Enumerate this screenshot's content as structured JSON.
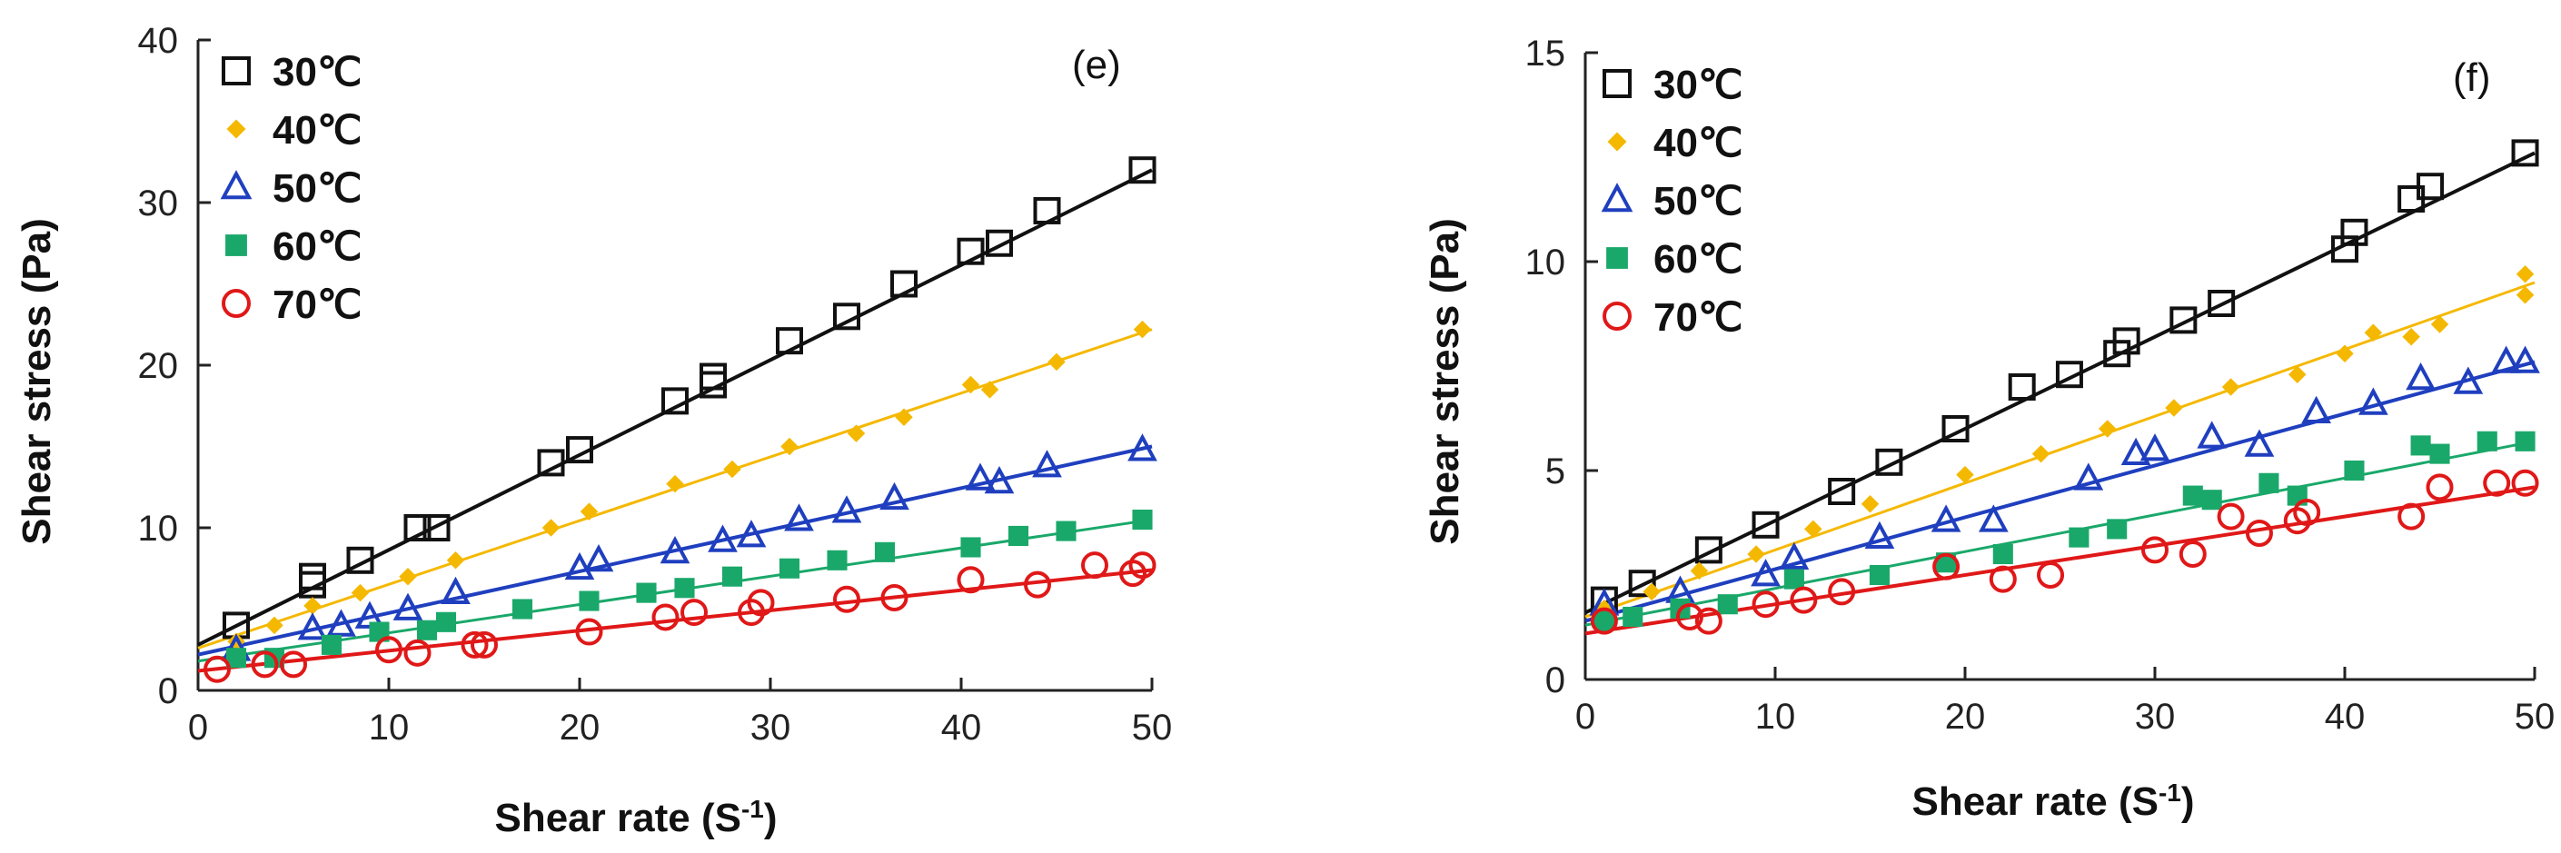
{
  "chart_data": [
    {
      "type": "scatter",
      "panel_label": "(e)",
      "xlabel": "Shear rate (S",
      "xlabel_sup": "-1",
      "xlabel_close": ")",
      "ylabel": "Shear stress (Pa)",
      "xlim": [
        0,
        50
      ],
      "ylim": [
        0,
        40
      ],
      "xticks": [
        0,
        10,
        20,
        30,
        40,
        50
      ],
      "yticks": [
        0,
        10,
        20,
        30,
        40
      ],
      "legend_position": "top-left",
      "series": [
        {
          "name": "30℃",
          "marker": "open-square",
          "color": "#111111",
          "x": [
            2,
            6,
            6,
            8.5,
            11.5,
            12.5,
            18.5,
            20,
            25,
            27,
            27,
            31,
            34,
            37,
            40.5,
            42,
            44.5,
            49.5
          ],
          "y": [
            4,
            6.5,
            7,
            8,
            10,
            10,
            14,
            14.8,
            17.8,
            18.8,
            19.3,
            21.5,
            23,
            25,
            27,
            27.5,
            29.5,
            32
          ],
          "fit": [
            [
              0,
              2.8
            ],
            [
              50,
              32
            ]
          ]
        },
        {
          "name": "40℃",
          "marker": "diamond",
          "color": "#f5b800",
          "x": [
            2,
            4,
            6,
            8.5,
            11,
            13.5,
            18.5,
            20.5,
            25,
            28,
            31,
            34.5,
            37,
            40.5,
            41.5,
            45,
            49.5
          ],
          "y": [
            3,
            4,
            5.2,
            6,
            7,
            8,
            10,
            11,
            12.7,
            13.6,
            15,
            15.8,
            16.8,
            18.8,
            18.5,
            20.2,
            22.2
          ],
          "fit": [
            [
              0,
              2.6
            ],
            [
              50,
              22.2
            ]
          ]
        },
        {
          "name": "50℃",
          "marker": "open-triangle",
          "color": "#1f3fbf",
          "x": [
            2,
            6,
            7.5,
            9,
            11,
            13.5,
            20,
            21,
            25,
            27.5,
            29,
            31.5,
            34,
            36.5,
            41,
            42,
            44.5,
            49.5
          ],
          "y": [
            2.5,
            3.8,
            4,
            4.5,
            5,
            6,
            7.5,
            8,
            8.5,
            9.2,
            9.5,
            10.5,
            11,
            11.8,
            13,
            12.8,
            13.8,
            14.8
          ],
          "fit": [
            [
              0,
              2.2
            ],
            [
              50,
              15
            ]
          ]
        },
        {
          "name": "60℃",
          "marker": "filled-square",
          "color": "#1aa86a",
          "x": [
            2,
            4,
            7,
            9.5,
            12,
            13,
            17,
            20.5,
            23.5,
            25.5,
            28,
            31,
            33.5,
            36,
            40.5,
            43,
            45.5,
            49.5
          ],
          "y": [
            2,
            2,
            2.8,
            3.6,
            3.7,
            4.2,
            5,
            5.5,
            6,
            6.3,
            7,
            7.5,
            8,
            8.5,
            8.8,
            9.5,
            9.8,
            10.5
          ],
          "fit": [
            [
              0,
              1.8
            ],
            [
              50,
              10.5
            ]
          ]
        },
        {
          "name": "70℃",
          "marker": "open-circle",
          "color": "#e01818",
          "x": [
            1,
            3.5,
            5,
            10,
            11.5,
            14.5,
            15,
            20.5,
            24.5,
            26,
            29,
            29.5,
            34,
            36.5,
            40.5,
            44,
            47,
            49,
            49.5
          ],
          "y": [
            1.3,
            1.6,
            1.6,
            2.5,
            2.3,
            2.8,
            2.8,
            3.6,
            4.5,
            4.8,
            4.8,
            5.4,
            5.6,
            5.7,
            6.8,
            6.5,
            7.7,
            7.2,
            7.7
          ],
          "fit": [
            [
              0,
              1.2
            ],
            [
              50,
              7.4
            ]
          ]
        }
      ]
    },
    {
      "type": "scatter",
      "panel_label": "(f)",
      "xlabel": "Shear rate (S",
      "xlabel_sup": "-1",
      "xlabel_close": ")",
      "ylabel": "Shear stress (Pa)",
      "xlim": [
        0,
        50
      ],
      "ylim": [
        0,
        15
      ],
      "xticks": [
        0,
        10,
        20,
        30,
        40,
        50
      ],
      "yticks": [
        0,
        5,
        10,
        15
      ],
      "legend_position": "top-left",
      "series": [
        {
          "name": "30℃",
          "marker": "open-square",
          "color": "#111111",
          "x": [
            1,
            3,
            6.5,
            9.5,
            13.5,
            16,
            19.5,
            23,
            25.5,
            28,
            28.5,
            31.5,
            33.5,
            40,
            40.5,
            43.5,
            44.5,
            49.5
          ],
          "y": [
            1.9,
            2.3,
            3.1,
            3.7,
            4.5,
            5.2,
            6,
            7,
            7.3,
            7.8,
            8.1,
            8.6,
            9,
            10.3,
            10.7,
            11.5,
            11.8,
            12.6
          ],
          "fit": [
            [
              0,
              1.6
            ],
            [
              50,
              12.6
            ]
          ]
        },
        {
          "name": "40℃",
          "marker": "diamond",
          "color": "#f5b800",
          "x": [
            1,
            3.5,
            6,
            9,
            12,
            15,
            20,
            24,
            27.5,
            31,
            34,
            37.5,
            40,
            41.5,
            43.5,
            45,
            49.5,
            49.5
          ],
          "y": [
            1.7,
            2.1,
            2.6,
            3,
            3.6,
            4.2,
            4.9,
            5.4,
            6,
            6.5,
            7,
            7.3,
            7.8,
            8.3,
            8.2,
            8.5,
            9.2,
            9.7
          ],
          "fit": [
            [
              0,
              1.5
            ],
            [
              50,
              9.5
            ]
          ]
        },
        {
          "name": "50℃",
          "marker": "open-triangle",
          "color": "#1f3fbf",
          "x": [
            1,
            5,
            9.5,
            11,
            15.5,
            19,
            21.5,
            26.5,
            29,
            30,
            33,
            35.5,
            38.5,
            41.5,
            44,
            46.5,
            48.5,
            49.5
          ],
          "y": [
            1.8,
            2.1,
            2.5,
            2.9,
            3.4,
            3.8,
            3.8,
            4.8,
            5.4,
            5.5,
            5.8,
            5.6,
            6.4,
            6.6,
            7.2,
            7.1,
            7.6,
            7.6
          ],
          "fit": [
            [
              0,
              1.4
            ],
            [
              50,
              7.6
            ]
          ]
        },
        {
          "name": "60℃",
          "marker": "filled-square",
          "color": "#1aa86a",
          "x": [
            1,
            2.5,
            5,
            7.5,
            11,
            15.5,
            19,
            22,
            26,
            28,
            32,
            33,
            36,
            37.5,
            40.5,
            44,
            45,
            47.5,
            49.5
          ],
          "y": [
            1.4,
            1.5,
            1.7,
            1.8,
            2.4,
            2.5,
            2.8,
            3,
            3.4,
            3.6,
            4.4,
            4.3,
            4.7,
            4.4,
            5,
            5.6,
            5.4,
            5.7,
            5.7
          ],
          "fit": [
            [
              0,
              1.3
            ],
            [
              50,
              5.7
            ]
          ]
        },
        {
          "name": "70℃",
          "marker": "open-circle",
          "color": "#e01818",
          "x": [
            1,
            5.5,
            6.5,
            9.5,
            11.5,
            13.5,
            19,
            22,
            24.5,
            30,
            32,
            34,
            35.5,
            37.5,
            38,
            43.5,
            45,
            48,
            49.5
          ],
          "y": [
            1.4,
            1.5,
            1.4,
            1.8,
            1.9,
            2.1,
            2.7,
            2.4,
            2.5,
            3.1,
            3,
            3.9,
            3.5,
            3.8,
            4,
            3.9,
            4.6,
            4.7,
            4.7
          ],
          "fit": [
            [
              0,
              1.1
            ],
            [
              50,
              4.6
            ]
          ]
        }
      ]
    }
  ]
}
